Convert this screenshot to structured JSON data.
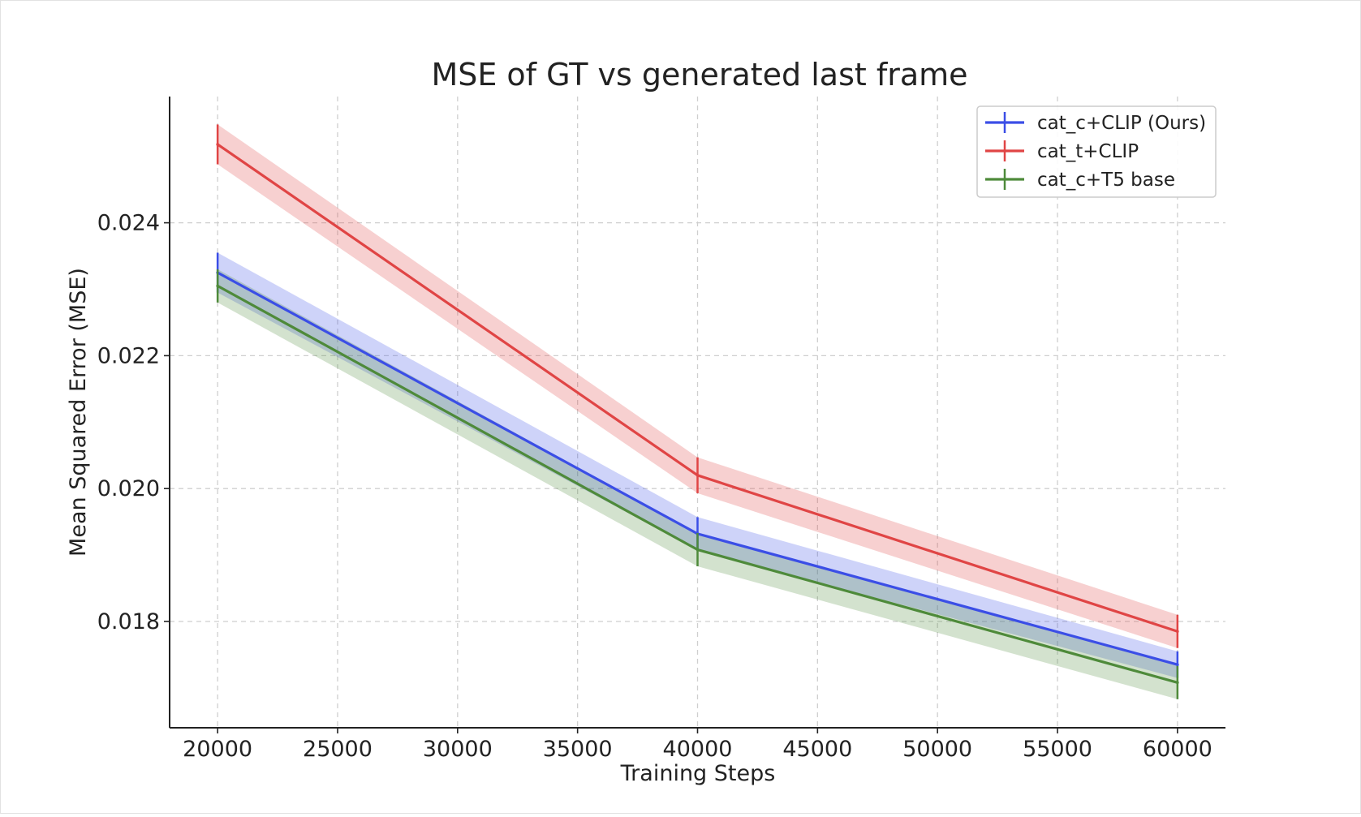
{
  "chart_data": {
    "type": "line",
    "title": "MSE of GT vs generated last frame",
    "xlabel": "Training Steps",
    "ylabel": "Mean Squared Error (MSE)",
    "x": [
      20000,
      40000,
      60000
    ],
    "xlim": [
      18000,
      62000
    ],
    "ylim": [
      0.0164,
      0.0259
    ],
    "xticks": [
      20000,
      25000,
      30000,
      35000,
      40000,
      45000,
      50000,
      55000,
      60000
    ],
    "xtick_labels": [
      "20000",
      "25000",
      "30000",
      "35000",
      "40000",
      "45000",
      "50000",
      "55000",
      "60000"
    ],
    "yticks": [
      0.018,
      0.02,
      0.022,
      0.024
    ],
    "ytick_labels": [
      "0.018",
      "0.020",
      "0.022",
      "0.024"
    ],
    "grid": true,
    "legend_position": "top-right",
    "series": [
      {
        "name": "cat_c+CLIP (Ours)",
        "color": "#3b4ee6",
        "values": [
          0.02325,
          0.01932,
          0.01735
        ],
        "errors": [
          0.0003,
          0.00025,
          0.0002
        ]
      },
      {
        "name": "cat_t+CLIP",
        "color": "#e04545",
        "values": [
          0.02518,
          0.0202,
          0.01785
        ],
        "errors": [
          0.0003,
          0.00027,
          0.00025
        ]
      },
      {
        "name": "cat_c+T5 base",
        "color": "#4e8a3a",
        "values": [
          0.02305,
          0.01908,
          0.01708
        ],
        "errors": [
          0.00025,
          0.00025,
          0.00025
        ]
      }
    ]
  }
}
